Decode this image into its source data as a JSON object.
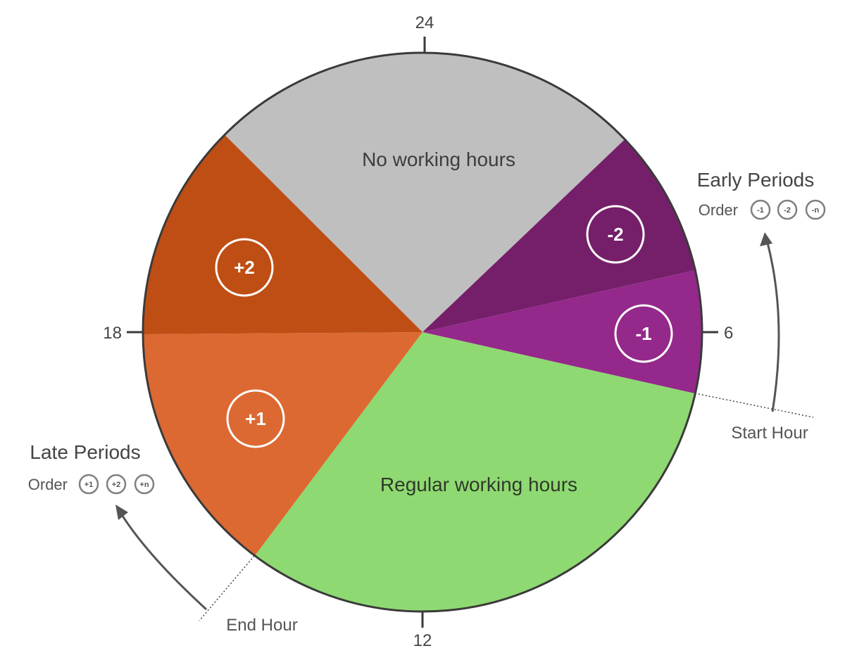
{
  "clock": {
    "top": "24",
    "right": "6",
    "bottom": "12",
    "left": "18"
  },
  "segments": [
    {
      "key": "no-working",
      "label": "No working hours",
      "color": "#bfbfbf"
    },
    {
      "key": "early-2",
      "label": "-2",
      "color": "#751f6a"
    },
    {
      "key": "early-1",
      "label": "-1",
      "color": "#94298b"
    },
    {
      "key": "regular",
      "label": "Regular working hours",
      "color": "#8fd972"
    },
    {
      "key": "late-1",
      "label": "+1",
      "color": "#dc6932"
    },
    {
      "key": "late-2",
      "label": "+2",
      "color": "#bf4e14"
    }
  ],
  "early": {
    "title": "Early Periods",
    "order_label": "Order",
    "order": [
      "-1",
      "-2",
      "-n"
    ],
    "hour_label": "Start Hour"
  },
  "late": {
    "title": "Late Periods",
    "order_label": "Order",
    "order": [
      "+1",
      "+2",
      "+n"
    ],
    "hour_label": "End Hour"
  },
  "colors": {
    "outline": "#3a3a3a",
    "text": "#444444",
    "badge": "#808080"
  }
}
